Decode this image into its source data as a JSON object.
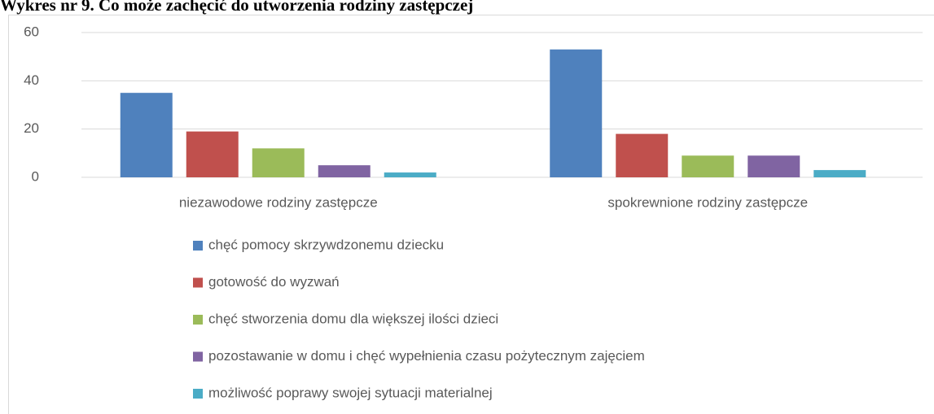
{
  "chart_data": {
    "type": "bar",
    "title": "Wykres nr 9. Co może zachęcić do utworzenia rodziny zastępczej",
    "categories": [
      "niezawodowe rodziny zastępcze",
      "spokrewnione rodziny zastępcze"
    ],
    "series": [
      {
        "name": "chęć pomocy skrzywdzonemu dziecku",
        "color": "#4f81bd",
        "values": [
          35,
          53
        ]
      },
      {
        "name": "gotowość do wyzwań",
        "color": "#c0504d",
        "values": [
          19,
          18
        ]
      },
      {
        "name": "chęć stworzenia domu dla większej ilości dzieci",
        "color": "#9bbb59",
        "values": [
          12,
          9
        ]
      },
      {
        "name": "pozostawanie w domu i chęć wypełnienia czasu pożytecznym zajęciem",
        "color": "#8064a2",
        "values": [
          5,
          9
        ]
      },
      {
        "name": "możliwość poprawy swojej sytuacji materialnej",
        "color": "#4bacc6",
        "values": [
          2,
          3
        ]
      }
    ],
    "ylim": [
      0,
      60
    ],
    "yticks": [
      0,
      20,
      40,
      60
    ],
    "grid": true,
    "legend": "bottom"
  }
}
